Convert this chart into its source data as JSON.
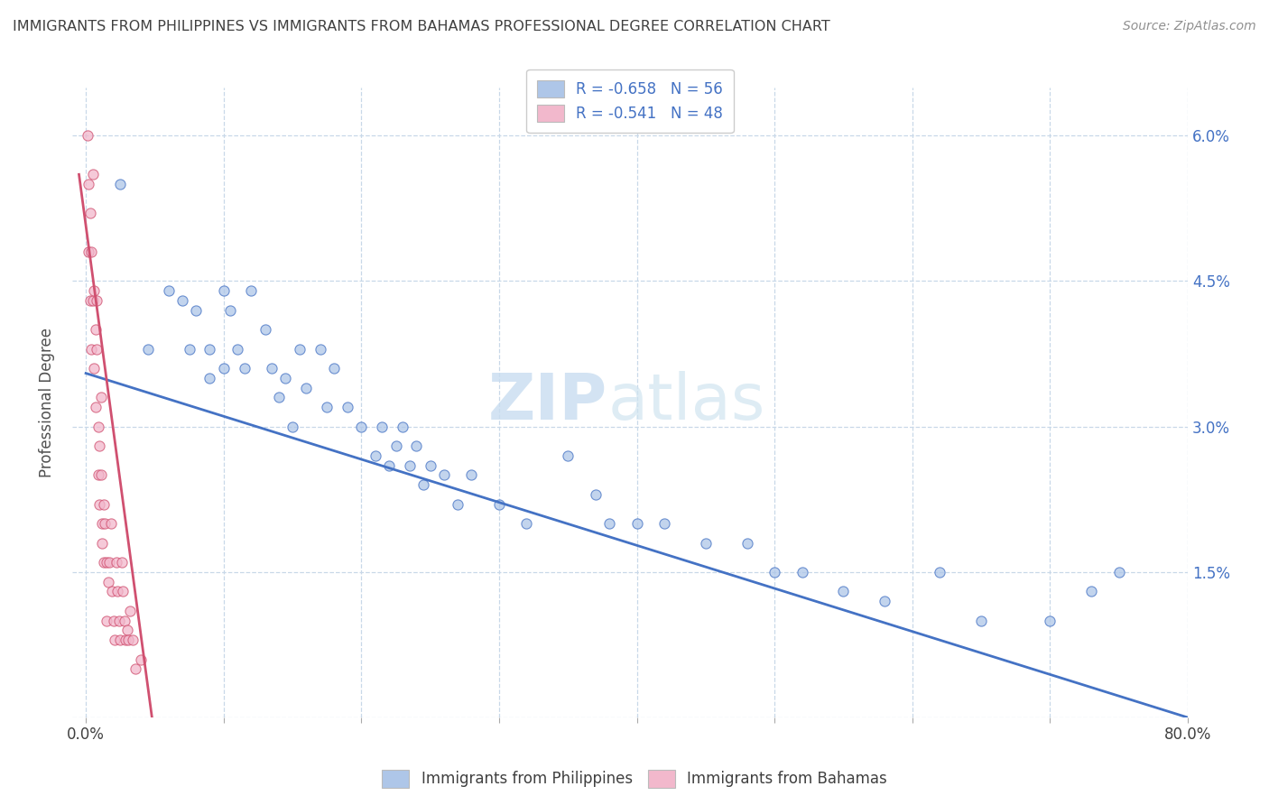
{
  "title": "IMMIGRANTS FROM PHILIPPINES VS IMMIGRANTS FROM BAHAMAS PROFESSIONAL DEGREE CORRELATION CHART",
  "source": "Source: ZipAtlas.com",
  "ylabel": "Professional Degree",
  "legend_blue_r": "R = -0.658",
  "legend_blue_n": "N = 56",
  "legend_pink_r": "R = -0.541",
  "legend_pink_n": "N = 48",
  "blue_color": "#aec6e8",
  "pink_color": "#f2b8cc",
  "line_blue": "#4472c4",
  "line_pink": "#d05070",
  "legend_text_color": "#4472c4",
  "title_color": "#404040",
  "source_color": "#909090",
  "background_color": "#ffffff",
  "grid_color": "#c8d8e8",
  "x_ticks": [
    0.0,
    0.1,
    0.2,
    0.3,
    0.4,
    0.5,
    0.6,
    0.7,
    0.8
  ],
  "y_ticks": [
    0.0,
    0.015,
    0.03,
    0.045,
    0.06
  ],
  "y_tick_labels": [
    "",
    "1.5%",
    "3.0%",
    "4.5%",
    "6.0%"
  ],
  "blue_scatter_x": [
    0.025,
    0.045,
    0.06,
    0.07,
    0.075,
    0.08,
    0.09,
    0.09,
    0.1,
    0.1,
    0.105,
    0.11,
    0.115,
    0.12,
    0.13,
    0.135,
    0.14,
    0.145,
    0.15,
    0.155,
    0.16,
    0.17,
    0.175,
    0.18,
    0.19,
    0.2,
    0.21,
    0.215,
    0.22,
    0.225,
    0.23,
    0.235,
    0.24,
    0.245,
    0.25,
    0.26,
    0.27,
    0.28,
    0.3,
    0.32,
    0.35,
    0.37,
    0.38,
    0.4,
    0.42,
    0.45,
    0.48,
    0.5,
    0.52,
    0.55,
    0.58,
    0.62,
    0.65,
    0.7,
    0.73,
    0.75
  ],
  "blue_scatter_y": [
    0.055,
    0.038,
    0.044,
    0.043,
    0.038,
    0.042,
    0.038,
    0.035,
    0.044,
    0.036,
    0.042,
    0.038,
    0.036,
    0.044,
    0.04,
    0.036,
    0.033,
    0.035,
    0.03,
    0.038,
    0.034,
    0.038,
    0.032,
    0.036,
    0.032,
    0.03,
    0.027,
    0.03,
    0.026,
    0.028,
    0.03,
    0.026,
    0.028,
    0.024,
    0.026,
    0.025,
    0.022,
    0.025,
    0.022,
    0.02,
    0.027,
    0.023,
    0.02,
    0.02,
    0.02,
    0.018,
    0.018,
    0.015,
    0.015,
    0.013,
    0.012,
    0.015,
    0.01,
    0.01,
    0.013,
    0.015
  ],
  "pink_scatter_x": [
    0.001,
    0.002,
    0.002,
    0.003,
    0.003,
    0.004,
    0.004,
    0.005,
    0.005,
    0.006,
    0.006,
    0.007,
    0.007,
    0.008,
    0.008,
    0.009,
    0.009,
    0.01,
    0.01,
    0.011,
    0.011,
    0.012,
    0.012,
    0.013,
    0.013,
    0.014,
    0.015,
    0.015,
    0.016,
    0.017,
    0.018,
    0.019,
    0.02,
    0.021,
    0.022,
    0.023,
    0.024,
    0.025,
    0.026,
    0.027,
    0.028,
    0.029,
    0.03,
    0.031,
    0.032,
    0.034,
    0.036,
    0.04
  ],
  "pink_scatter_y": [
    0.06,
    0.055,
    0.048,
    0.052,
    0.043,
    0.048,
    0.038,
    0.043,
    0.056,
    0.044,
    0.036,
    0.04,
    0.032,
    0.038,
    0.043,
    0.03,
    0.025,
    0.028,
    0.022,
    0.025,
    0.033,
    0.02,
    0.018,
    0.022,
    0.016,
    0.02,
    0.016,
    0.01,
    0.014,
    0.016,
    0.02,
    0.013,
    0.01,
    0.008,
    0.016,
    0.013,
    0.01,
    0.008,
    0.016,
    0.013,
    0.01,
    0.008,
    0.009,
    0.008,
    0.011,
    0.008,
    0.005,
    0.006
  ],
  "blue_line_x": [
    0.0,
    0.8
  ],
  "blue_line_y": [
    0.0355,
    0.0
  ],
  "pink_line_x": [
    -0.005,
    0.048
  ],
  "pink_line_y": [
    0.056,
    0.0
  ],
  "xlim": [
    -0.01,
    0.8
  ],
  "ylim": [
    0.0,
    0.065
  ],
  "marker_size": 65
}
